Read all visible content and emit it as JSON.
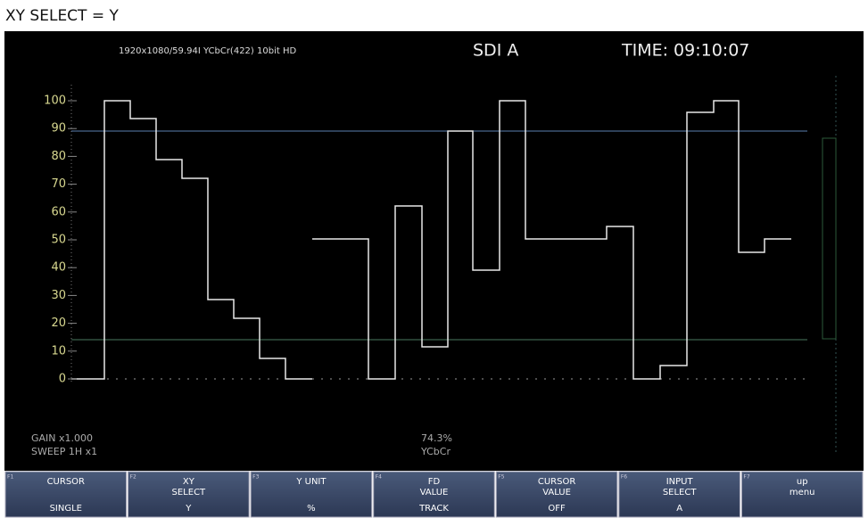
{
  "caption": "XY SELECT = Y",
  "header": {
    "format": "1920x1080/59.94I YCbCr(422) 10bit HD",
    "input": "SDI A",
    "time": "TIME: 09:10:07"
  },
  "scale": {
    "labels": [
      "100",
      "90",
      "80",
      "70",
      "60",
      "50",
      "40",
      "30",
      "20",
      "10",
      "0"
    ]
  },
  "status": {
    "gain": "GAIN x1.000",
    "sweep": "SWEEP 1H x1",
    "cursor_value": "74.3%",
    "color_space": "YCbCr"
  },
  "function_keys": [
    {
      "id": "F1",
      "label": [
        "CURSOR"
      ],
      "value": "SINGLE"
    },
    {
      "id": "F2",
      "label": [
        "XY",
        "SELECT"
      ],
      "value": "Y"
    },
    {
      "id": "F3",
      "label": [
        "Y UNIT"
      ],
      "value": "%"
    },
    {
      "id": "F4",
      "label": [
        "FD",
        "VALUE"
      ],
      "value": "TRACK"
    },
    {
      "id": "F5",
      "label": [
        "CURSOR",
        "VALUE"
      ],
      "value": "OFF"
    },
    {
      "id": "F6",
      "label": [
        "INPUT",
        "SELECT"
      ],
      "value": "A"
    },
    {
      "id": "F7",
      "label": [
        "up",
        "menu"
      ]
    }
  ]
}
